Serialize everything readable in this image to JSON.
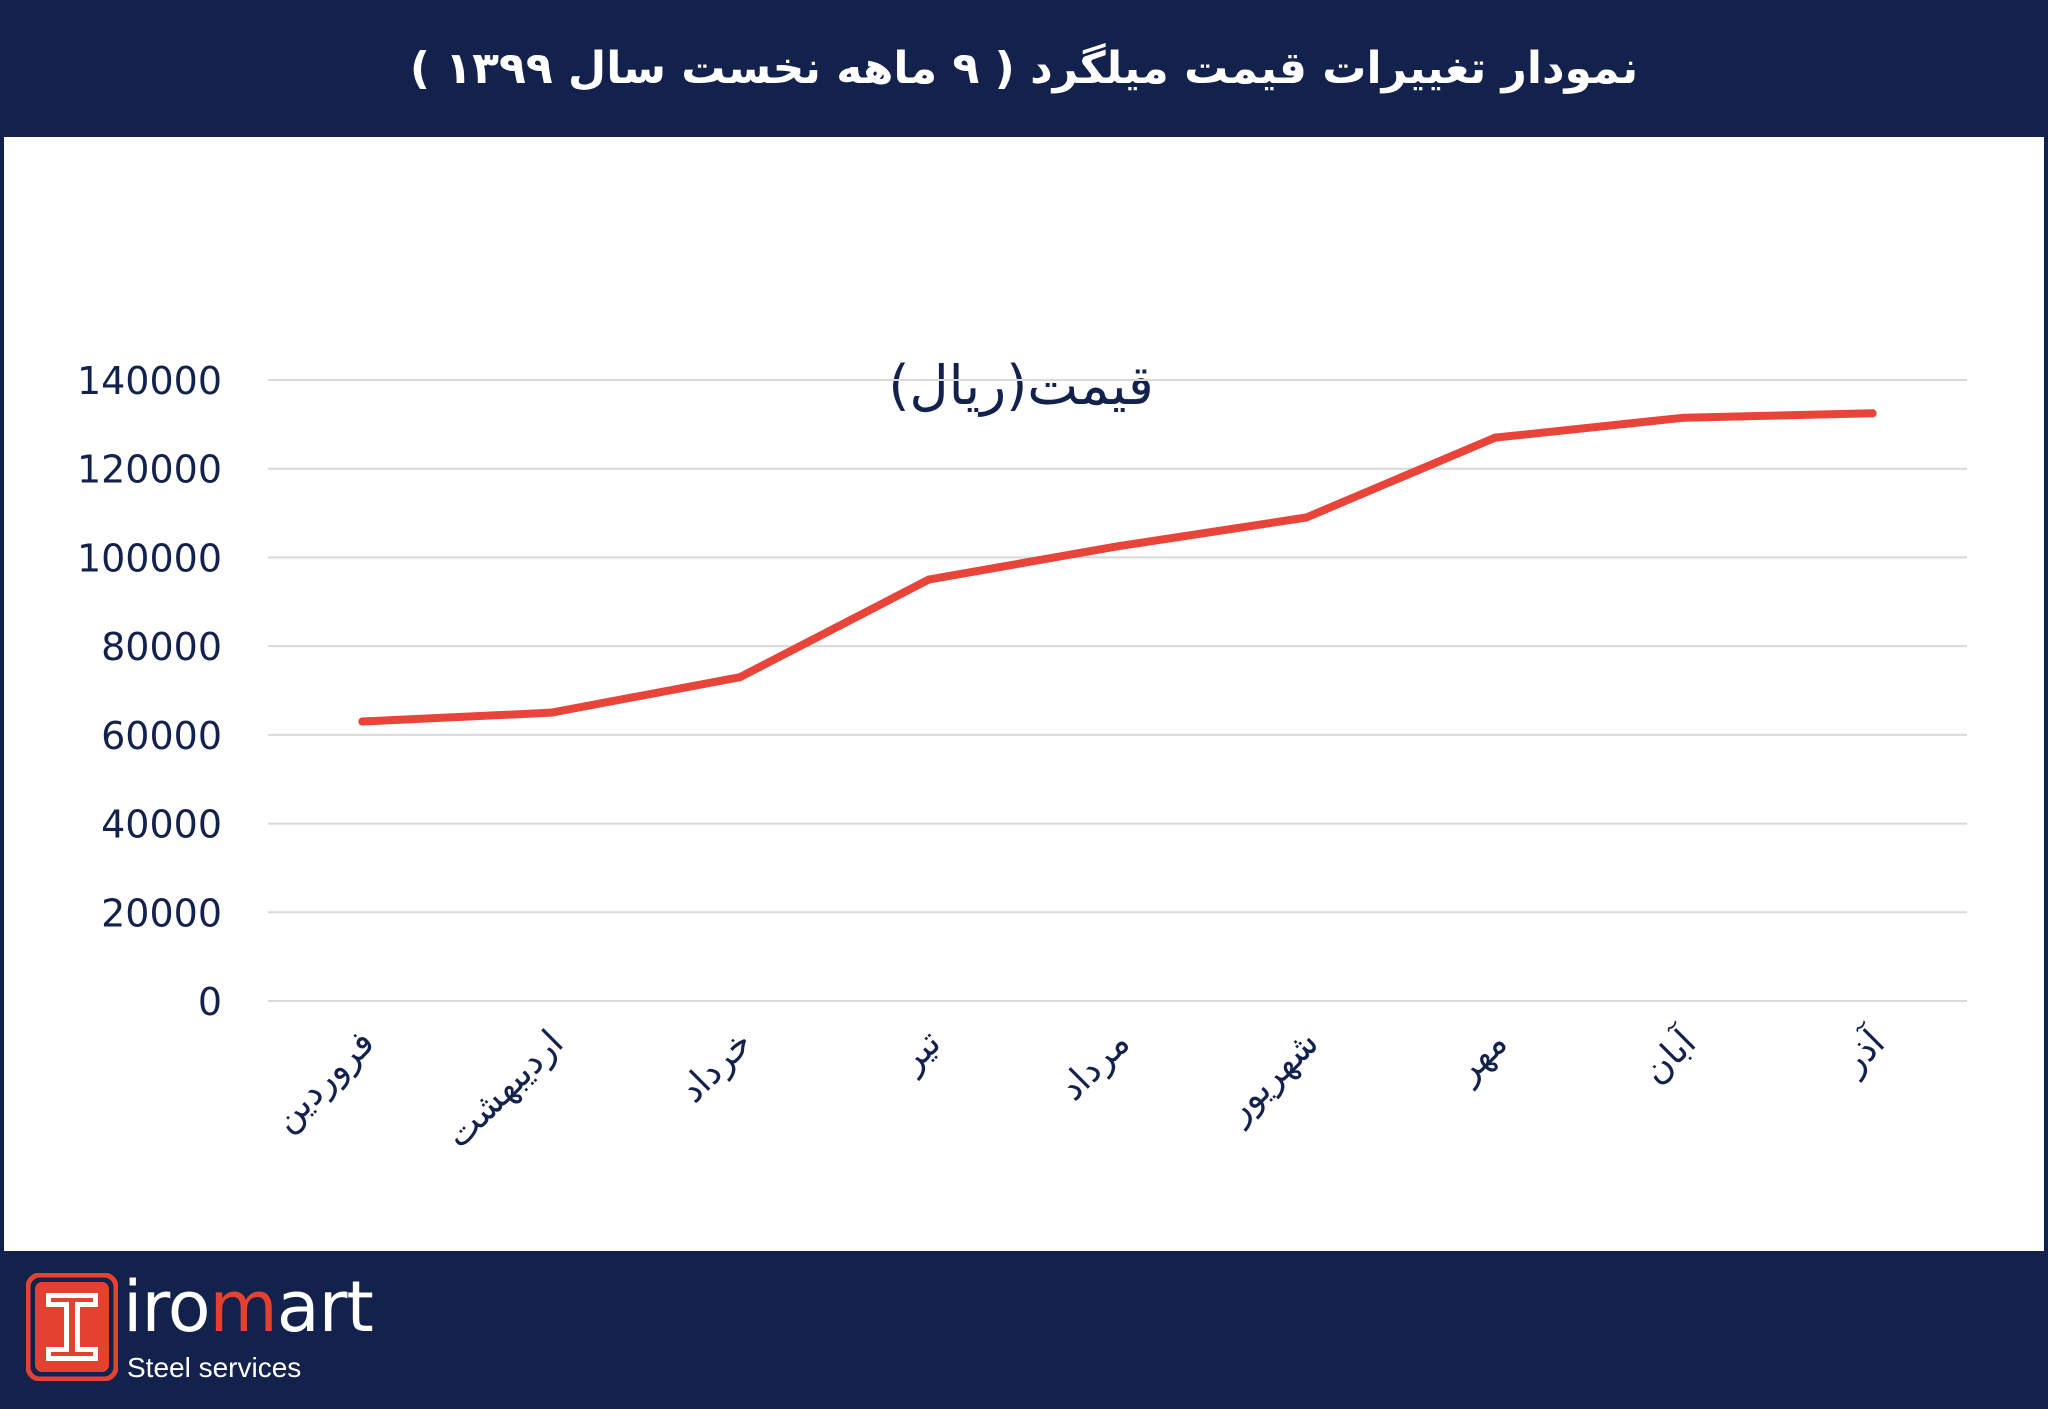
{
  "header": {
    "title": "نمودار تغییرات قیمت میلگرد ( ۹ ماهه نخست سال ۱۳۹۹ )"
  },
  "chart_data": {
    "type": "line",
    "title": "قیمت(ریال)",
    "categories": [
      "فروردین",
      "اردیبهشت",
      "خرداد",
      "تیر",
      "مرداد",
      "شهریور",
      "مهر",
      "آبان",
      "آذر"
    ],
    "series": [
      {
        "values": [
          63000,
          65000,
          73000,
          95000,
          102500,
          109000,
          127000,
          131500,
          132500
        ]
      }
    ],
    "ylim": [
      0,
      140000
    ],
    "yticks": [
      "0",
      "20000",
      "40000",
      "60000",
      "80000",
      "100000",
      "120000",
      "140000"
    ],
    "grid": true,
    "line_color": "#e8443a",
    "grid_color": "#d9d9d9"
  },
  "brand": {
    "name_prefix": "iro",
    "name_accent": "m",
    "name_suffix": "art",
    "tagline": "Steel services",
    "accent_color": "#e2422f",
    "frame_color": "#13214d"
  }
}
